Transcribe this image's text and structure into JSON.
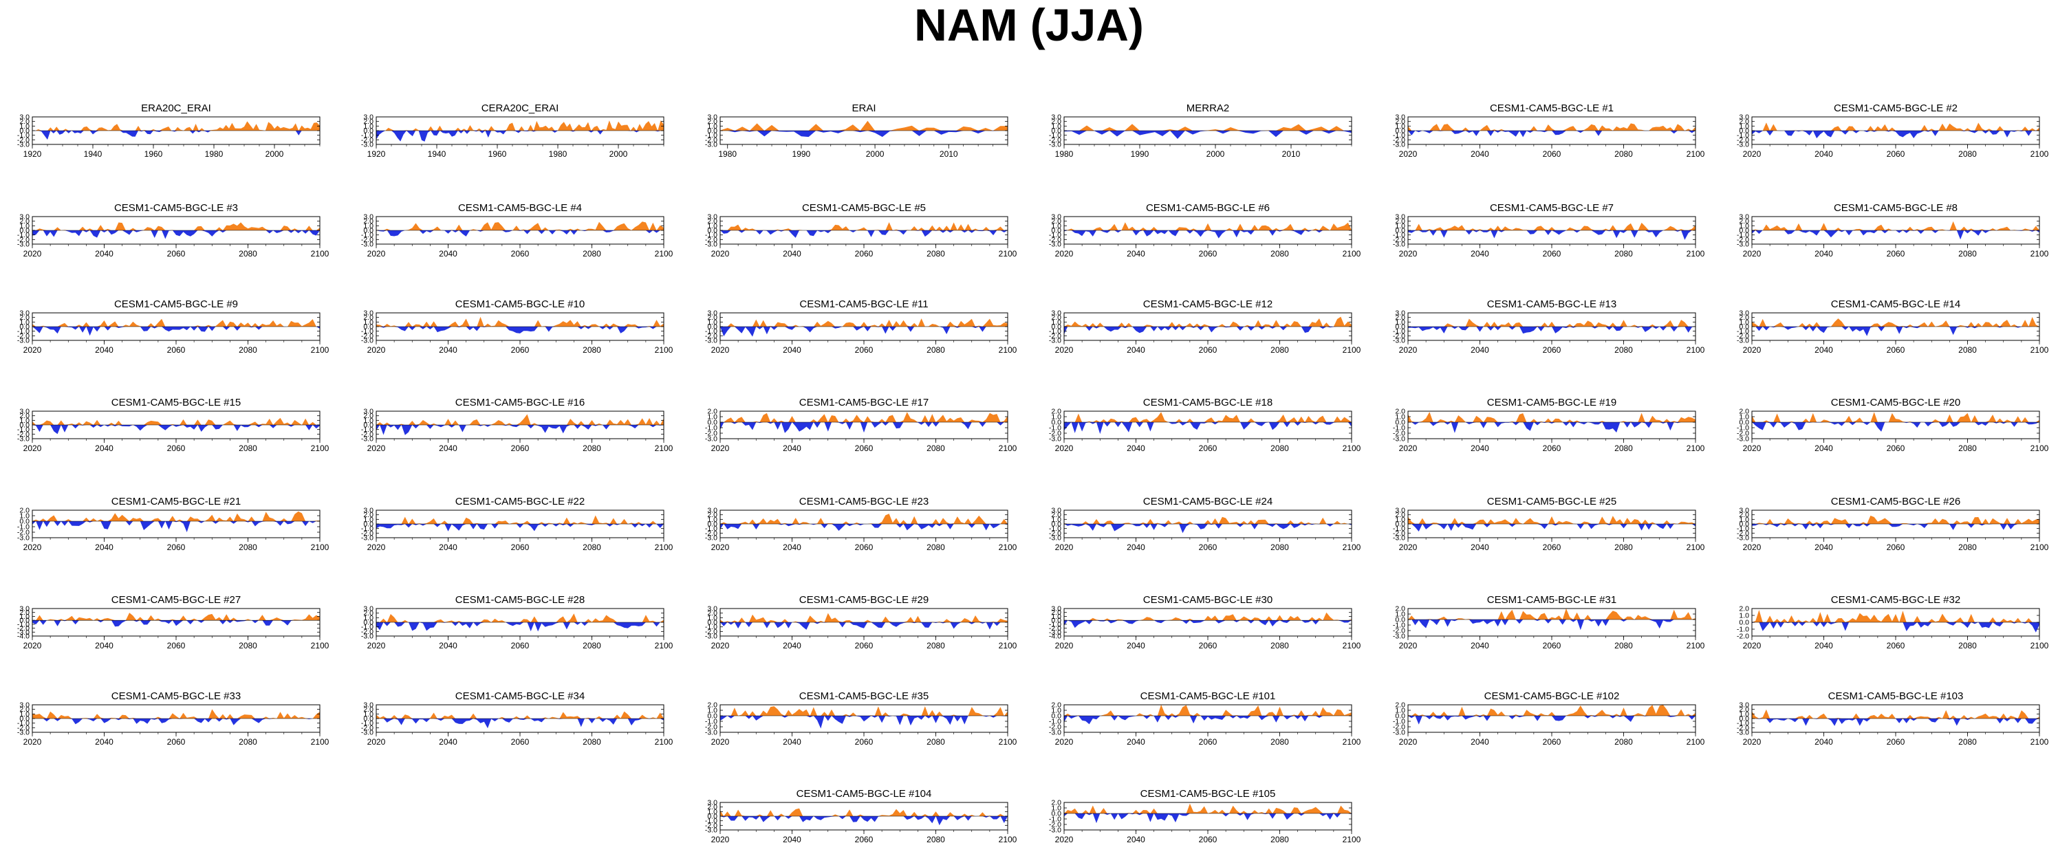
{
  "figure_title": "NAM (JJA)",
  "colors": {
    "positive": "#f5841f",
    "negative": "#2433e0",
    "axis": "#000000"
  },
  "chart_data": [
    {
      "type": "area",
      "title": "ERA20C_ERAI",
      "x_range": [
        1920,
        2015
      ],
      "x_ticks": [
        1920,
        1940,
        1960,
        1980,
        2000
      ],
      "y_ticks": [
        3.0,
        2.0,
        1.0,
        0.0,
        -1.0,
        -2.0,
        -3.0
      ],
      "ylim": [
        -3,
        3
      ],
      "seed": 1,
      "trend": 1.0
    },
    {
      "type": "area",
      "title": "CERA20C_ERAI",
      "x_range": [
        1920,
        2015
      ],
      "x_ticks": [
        1920,
        1940,
        1960,
        1980,
        2000
      ],
      "y_ticks": [
        3.0,
        2.0,
        1.0,
        0.0,
        -1.0,
        -2.0,
        -3.0
      ],
      "ylim": [
        -3,
        3
      ],
      "seed": 2,
      "trend": 1.2
    },
    {
      "type": "area",
      "title": "ERAI",
      "x_range": [
        1979,
        2018
      ],
      "x_ticks": [
        1980,
        1990,
        2000,
        2010
      ],
      "y_ticks": [
        3.0,
        2.0,
        1.0,
        0.0,
        -1.0,
        -2.0,
        -3.0
      ],
      "ylim": [
        -3,
        3
      ],
      "seed": 3,
      "trend": 0
    },
    {
      "type": "area",
      "title": "MERRA2",
      "x_range": [
        1980,
        2018
      ],
      "x_ticks": [
        1980,
        1990,
        2000,
        2010
      ],
      "y_ticks": [
        3.0,
        2.0,
        1.0,
        0.0,
        -1.0,
        -2.0,
        -3.0
      ],
      "ylim": [
        -3,
        3
      ],
      "seed": 4,
      "trend": 0
    },
    {
      "type": "area",
      "title": "CESM1-CAM5-BGC-LE #1",
      "x_range": [
        2020,
        2100
      ],
      "x_ticks": [
        2020,
        2040,
        2060,
        2080,
        2100
      ],
      "y_ticks": [
        3.0,
        2.0,
        1.0,
        0.0,
        -1.0,
        -2.0,
        -3.0
      ],
      "ylim": [
        -3,
        3
      ],
      "seed": 5,
      "trend": 0.3
    },
    {
      "type": "area",
      "title": "CESM1-CAM5-BGC-LE #2",
      "x_range": [
        2020,
        2100
      ],
      "x_ticks": [
        2020,
        2040,
        2060,
        2080,
        2100
      ],
      "y_ticks": [
        3.0,
        2.0,
        1.0,
        0.0,
        -1.0,
        -2.0,
        -3.0
      ],
      "ylim": [
        -3,
        3
      ],
      "seed": 6,
      "trend": 0.3
    },
    {
      "type": "area",
      "title": "CESM1-CAM5-BGC-LE #3",
      "x_range": [
        2020,
        2100
      ],
      "x_ticks": [
        2020,
        2040,
        2060,
        2080,
        2100
      ],
      "y_ticks": [
        3.0,
        2.0,
        1.0,
        0.0,
        -1.0,
        -2.0,
        -3.0
      ],
      "ylim": [
        -3,
        3
      ],
      "seed": 7,
      "trend": 0.4
    },
    {
      "type": "area",
      "title": "CESM1-CAM5-BGC-LE #4",
      "x_range": [
        2020,
        2100
      ],
      "x_ticks": [
        2020,
        2040,
        2060,
        2080,
        2100
      ],
      "y_ticks": [
        3.0,
        2.0,
        1.0,
        0.0,
        -1.0,
        -2.0,
        -3.0
      ],
      "ylim": [
        -3,
        3
      ],
      "seed": 8,
      "trend": 0.6
    },
    {
      "type": "area",
      "title": "CESM1-CAM5-BGC-LE #5",
      "x_range": [
        2020,
        2100
      ],
      "x_ticks": [
        2020,
        2040,
        2060,
        2080,
        2100
      ],
      "y_ticks": [
        3.0,
        2.0,
        1.0,
        0.0,
        -1.0,
        -2.0,
        -3.0
      ],
      "ylim": [
        -3,
        3
      ],
      "seed": 9,
      "trend": 0.2
    },
    {
      "type": "area",
      "title": "CESM1-CAM5-BGC-LE #6",
      "x_range": [
        2020,
        2100
      ],
      "x_ticks": [
        2020,
        2040,
        2060,
        2080,
        2100
      ],
      "y_ticks": [
        3.0,
        2.0,
        1.0,
        0.0,
        -1.0,
        -2.0,
        -3.0
      ],
      "ylim": [
        -3,
        3
      ],
      "seed": 10,
      "trend": 0.3
    },
    {
      "type": "area",
      "title": "CESM1-CAM5-BGC-LE #7",
      "x_range": [
        2020,
        2100
      ],
      "x_ticks": [
        2020,
        2040,
        2060,
        2080,
        2100
      ],
      "y_ticks": [
        3.0,
        2.0,
        1.0,
        0.0,
        -1.0,
        -2.0,
        -3.0
      ],
      "ylim": [
        -3,
        3
      ],
      "seed": 11,
      "trend": 0.1
    },
    {
      "type": "area",
      "title": "CESM1-CAM5-BGC-LE #8",
      "x_range": [
        2020,
        2100
      ],
      "x_ticks": [
        2020,
        2040,
        2060,
        2080,
        2100
      ],
      "y_ticks": [
        3.0,
        2.0,
        1.0,
        0.0,
        -1.0,
        -2.0,
        -3.0
      ],
      "ylim": [
        -3,
        3
      ],
      "seed": 12,
      "trend": 0.3
    },
    {
      "type": "area",
      "title": "CESM1-CAM5-BGC-LE #9",
      "x_range": [
        2020,
        2100
      ],
      "x_ticks": [
        2020,
        2040,
        2060,
        2080,
        2100
      ],
      "y_ticks": [
        3.0,
        2.0,
        1.0,
        0.0,
        -1.0,
        -2.0,
        -3.0
      ],
      "ylim": [
        -3,
        3
      ],
      "seed": 13,
      "trend": 0.5
    },
    {
      "type": "area",
      "title": "CESM1-CAM5-BGC-LE #10",
      "x_range": [
        2020,
        2100
      ],
      "x_ticks": [
        2020,
        2040,
        2060,
        2080,
        2100
      ],
      "y_ticks": [
        3.0,
        2.0,
        1.0,
        0.0,
        -1.0,
        -2.0,
        -3.0
      ],
      "ylim": [
        -3,
        3
      ],
      "seed": 14,
      "trend": 0.2
    },
    {
      "type": "area",
      "title": "CESM1-CAM5-BGC-LE #11",
      "x_range": [
        2020,
        2100
      ],
      "x_ticks": [
        2020,
        2040,
        2060,
        2080,
        2100
      ],
      "y_ticks": [
        3.0,
        2.0,
        1.0,
        0.0,
        -1.0,
        -2.0,
        -3.0
      ],
      "ylim": [
        -3,
        3
      ],
      "seed": 15,
      "trend": 0.5
    },
    {
      "type": "area",
      "title": "CESM1-CAM5-BGC-LE #12",
      "x_range": [
        2020,
        2100
      ],
      "x_ticks": [
        2020,
        2040,
        2060,
        2080,
        2100
      ],
      "y_ticks": [
        3.0,
        2.0,
        1.0,
        0.0,
        -1.0,
        -2.0,
        -3.0
      ],
      "ylim": [
        -3,
        3
      ],
      "seed": 16,
      "trend": 0.3
    },
    {
      "type": "area",
      "title": "CESM1-CAM5-BGC-LE #13",
      "x_range": [
        2020,
        2100
      ],
      "x_ticks": [
        2020,
        2040,
        2060,
        2080,
        2100
      ],
      "y_ticks": [
        3.0,
        2.0,
        1.0,
        0.0,
        -1.0,
        -2.0,
        -3.0
      ],
      "ylim": [
        -3,
        3
      ],
      "seed": 17,
      "trend": 0.2
    },
    {
      "type": "area",
      "title": "CESM1-CAM5-BGC-LE #14",
      "x_range": [
        2020,
        2100
      ],
      "x_ticks": [
        2020,
        2040,
        2060,
        2080,
        2100
      ],
      "y_ticks": [
        3.0,
        2.0,
        1.0,
        0.0,
        -1.0,
        -2.0,
        -3.0
      ],
      "ylim": [
        -3,
        3
      ],
      "seed": 18,
      "trend": 0.3
    },
    {
      "type": "area",
      "title": "CESM1-CAM5-BGC-LE #15",
      "x_range": [
        2020,
        2100
      ],
      "x_ticks": [
        2020,
        2040,
        2060,
        2080,
        2100
      ],
      "y_ticks": [
        3.0,
        2.0,
        1.0,
        0.0,
        -1.0,
        -2.0,
        -3.0
      ],
      "ylim": [
        -3,
        3
      ],
      "seed": 19,
      "trend": 0.3
    },
    {
      "type": "area",
      "title": "CESM1-CAM5-BGC-LE #16",
      "x_range": [
        2020,
        2100
      ],
      "x_ticks": [
        2020,
        2040,
        2060,
        2080,
        2100
      ],
      "y_ticks": [
        3.0,
        2.0,
        1.0,
        0.0,
        -1.0,
        -2.0,
        -3.0
      ],
      "ylim": [
        -3,
        3
      ],
      "seed": 20,
      "trend": 0.5
    },
    {
      "type": "area",
      "title": "CESM1-CAM5-BGC-LE #17",
      "x_range": [
        2020,
        2100
      ],
      "x_ticks": [
        2020,
        2040,
        2060,
        2080,
        2100
      ],
      "y_ticks": [
        2.0,
        1.0,
        0.0,
        -1.0,
        -2.0,
        -3.0
      ],
      "ylim": [
        -3,
        2
      ],
      "seed": 21,
      "trend": 0.4
    },
    {
      "type": "area",
      "title": "CESM1-CAM5-BGC-LE #18",
      "x_range": [
        2020,
        2100
      ],
      "x_ticks": [
        2020,
        2040,
        2060,
        2080,
        2100
      ],
      "y_ticks": [
        2.0,
        1.0,
        0.0,
        -1.0,
        -2.0,
        -3.0
      ],
      "ylim": [
        -3,
        2
      ],
      "seed": 22,
      "trend": 0.2
    },
    {
      "type": "area",
      "title": "CESM1-CAM5-BGC-LE #19",
      "x_range": [
        2020,
        2100
      ],
      "x_ticks": [
        2020,
        2040,
        2060,
        2080,
        2100
      ],
      "y_ticks": [
        2.0,
        1.0,
        0.0,
        -1.0,
        -2.0,
        -3.0
      ],
      "ylim": [
        -3,
        2
      ],
      "seed": 23,
      "trend": 0.1
    },
    {
      "type": "area",
      "title": "CESM1-CAM5-BGC-LE #20",
      "x_range": [
        2020,
        2100
      ],
      "x_ticks": [
        2020,
        2040,
        2060,
        2080,
        2100
      ],
      "y_ticks": [
        2.0,
        1.0,
        0.0,
        -1.0,
        -2.0,
        -3.0
      ],
      "ylim": [
        -3,
        2
      ],
      "seed": 24,
      "trend": 0.2
    },
    {
      "type": "area",
      "title": "CESM1-CAM5-BGC-LE #21",
      "x_range": [
        2020,
        2100
      ],
      "x_ticks": [
        2020,
        2040,
        2060,
        2080,
        2100
      ],
      "y_ticks": [
        2.0,
        1.0,
        0.0,
        -1.0,
        -2.0,
        -3.0
      ],
      "ylim": [
        -3,
        2
      ],
      "seed": 25,
      "trend": 0.1
    },
    {
      "type": "area",
      "title": "CESM1-CAM5-BGC-LE #22",
      "x_range": [
        2020,
        2100
      ],
      "x_ticks": [
        2020,
        2040,
        2060,
        2080,
        2100
      ],
      "y_ticks": [
        3.0,
        2.0,
        1.0,
        0.0,
        -1.0,
        -2.0,
        -3.0
      ],
      "ylim": [
        -3,
        3
      ],
      "seed": 26,
      "trend": 0.3
    },
    {
      "type": "area",
      "title": "CESM1-CAM5-BGC-LE #23",
      "x_range": [
        2020,
        2100
      ],
      "x_ticks": [
        2020,
        2040,
        2060,
        2080,
        2100
      ],
      "y_ticks": [
        3.0,
        2.0,
        1.0,
        0.0,
        -1.0,
        -2.0,
        -3.0
      ],
      "ylim": [
        -3,
        3
      ],
      "seed": 27,
      "trend": 0.2
    },
    {
      "type": "area",
      "title": "CESM1-CAM5-BGC-LE #24",
      "x_range": [
        2020,
        2100
      ],
      "x_ticks": [
        2020,
        2040,
        2060,
        2080,
        2100
      ],
      "y_ticks": [
        3.0,
        2.0,
        1.0,
        0.0,
        -1.0,
        -2.0,
        -3.0
      ],
      "ylim": [
        -3,
        3
      ],
      "seed": 28,
      "trend": 0.3
    },
    {
      "type": "area",
      "title": "CESM1-CAM5-BGC-LE #25",
      "x_range": [
        2020,
        2100
      ],
      "x_ticks": [
        2020,
        2040,
        2060,
        2080,
        2100
      ],
      "y_ticks": [
        3.0,
        2.0,
        1.0,
        0.0,
        -1.0,
        -2.0,
        -3.0
      ],
      "ylim": [
        -3,
        3
      ],
      "seed": 29,
      "trend": 0.2
    },
    {
      "type": "area",
      "title": "CESM1-CAM5-BGC-LE #26",
      "x_range": [
        2020,
        2100
      ],
      "x_ticks": [
        2020,
        2040,
        2060,
        2080,
        2100
      ],
      "y_ticks": [
        3.0,
        2.0,
        1.0,
        0.0,
        -1.0,
        -2.0,
        -3.0
      ],
      "ylim": [
        -3,
        3
      ],
      "seed": 30,
      "trend": 0.4
    },
    {
      "type": "area",
      "title": "CESM1-CAM5-BGC-LE #27",
      "x_range": [
        2020,
        2100
      ],
      "x_ticks": [
        2020,
        2040,
        2060,
        2080,
        2100
      ],
      "y_ticks": [
        3.0,
        2.0,
        1.0,
        0.0,
        -1.0,
        -2.0,
        -3.0,
        -4.0
      ],
      "ylim": [
        -4,
        3
      ],
      "seed": 31,
      "trend": 0.3
    },
    {
      "type": "area",
      "title": "CESM1-CAM5-BGC-LE #28",
      "x_range": [
        2020,
        2100
      ],
      "x_ticks": [
        2020,
        2040,
        2060,
        2080,
        2100
      ],
      "y_ticks": [
        3.0,
        2.0,
        1.0,
        0.0,
        -1.0,
        -2.0,
        -3.0
      ],
      "ylim": [
        -3,
        3
      ],
      "seed": 32,
      "trend": 0.2
    },
    {
      "type": "area",
      "title": "CESM1-CAM5-BGC-LE #29",
      "x_range": [
        2020,
        2100
      ],
      "x_ticks": [
        2020,
        2040,
        2060,
        2080,
        2100
      ],
      "y_ticks": [
        3.0,
        2.0,
        1.0,
        0.0,
        -1.0,
        -2.0,
        -3.0
      ],
      "ylim": [
        -3,
        3
      ],
      "seed": 33,
      "trend": 0.2
    },
    {
      "type": "area",
      "title": "CESM1-CAM5-BGC-LE #30",
      "x_range": [
        2020,
        2100
      ],
      "x_ticks": [
        2020,
        2040,
        2060,
        2080,
        2100
      ],
      "y_ticks": [
        3.0,
        2.0,
        1.0,
        0.0,
        -1.0,
        -2.0,
        -3.0,
        -4.0
      ],
      "ylim": [
        -4,
        3
      ],
      "seed": 34,
      "trend": 0.3
    },
    {
      "type": "area",
      "title": "CESM1-CAM5-BGC-LE #31",
      "x_range": [
        2020,
        2100
      ],
      "x_ticks": [
        2020,
        2040,
        2060,
        2080,
        2100
      ],
      "y_ticks": [
        2.0,
        1.0,
        0.0,
        -1.0,
        -2.0,
        -3.0
      ],
      "ylim": [
        -3,
        2
      ],
      "seed": 35,
      "trend": 0.5
    },
    {
      "type": "area",
      "title": "CESM1-CAM5-BGC-LE #32",
      "x_range": [
        2020,
        2100
      ],
      "x_ticks": [
        2020,
        2040,
        2060,
        2080,
        2100
      ],
      "y_ticks": [
        2.0,
        1.0,
        0.0,
        -1.0,
        -2.0
      ],
      "ylim": [
        -2,
        2
      ],
      "seed": 36,
      "trend": 0.1
    },
    {
      "type": "area",
      "title": "CESM1-CAM5-BGC-LE #33",
      "x_range": [
        2020,
        2100
      ],
      "x_ticks": [
        2020,
        2040,
        2060,
        2080,
        2100
      ],
      "y_ticks": [
        3.0,
        2.0,
        1.0,
        0.0,
        -1.0,
        -2.0,
        -3.0
      ],
      "ylim": [
        -3,
        3
      ],
      "seed": 37,
      "trend": 0.5
    },
    {
      "type": "area",
      "title": "CESM1-CAM5-BGC-LE #34",
      "x_range": [
        2020,
        2100
      ],
      "x_ticks": [
        2020,
        2040,
        2060,
        2080,
        2100
      ],
      "y_ticks": [
        3.0,
        2.0,
        1.0,
        0.0,
        -1.0,
        -2.0,
        -3.0
      ],
      "ylim": [
        -3,
        3
      ],
      "seed": 38,
      "trend": 0.4
    },
    {
      "type": "area",
      "title": "CESM1-CAM5-BGC-LE #35",
      "x_range": [
        2020,
        2100
      ],
      "x_ticks": [
        2020,
        2040,
        2060,
        2080,
        2100
      ],
      "y_ticks": [
        2.0,
        1.0,
        0.0,
        -1.0,
        -2.0,
        -3.0
      ],
      "ylim": [
        -3,
        2
      ],
      "seed": 39,
      "trend": 0.2
    },
    {
      "type": "area",
      "title": "CESM1-CAM5-BGC-LE #101",
      "x_range": [
        2020,
        2100
      ],
      "x_ticks": [
        2020,
        2040,
        2060,
        2080,
        2100
      ],
      "y_ticks": [
        2.0,
        1.0,
        0.0,
        -1.0,
        -2.0,
        -3.0
      ],
      "ylim": [
        -3,
        2
      ],
      "seed": 40,
      "trend": 0.2
    },
    {
      "type": "area",
      "title": "CESM1-CAM5-BGC-LE #102",
      "x_range": [
        2020,
        2100
      ],
      "x_ticks": [
        2020,
        2040,
        2060,
        2080,
        2100
      ],
      "y_ticks": [
        2.0,
        1.0,
        0.0,
        -1.0,
        -2.0,
        -3.0
      ],
      "ylim": [
        -3,
        2
      ],
      "seed": 41,
      "trend": 0.3
    },
    {
      "type": "area",
      "title": "CESM1-CAM5-BGC-LE #103",
      "x_range": [
        2020,
        2100
      ],
      "x_ticks": [
        2020,
        2040,
        2060,
        2080,
        2100
      ],
      "y_ticks": [
        3.0,
        2.0,
        1.0,
        0.0,
        -1.0,
        -2.0,
        -3.0
      ],
      "ylim": [
        -3,
        3
      ],
      "seed": 42,
      "trend": 0.3
    },
    {
      "type": "area",
      "title": "CESM1-CAM5-BGC-LE #104",
      "x_range": [
        2020,
        2100
      ],
      "x_ticks": [
        2020,
        2040,
        2060,
        2080,
        2100
      ],
      "y_ticks": [
        3.0,
        2.0,
        1.0,
        0.0,
        -1.0,
        -2.0,
        -3.0
      ],
      "ylim": [
        -3,
        3
      ],
      "seed": 43,
      "trend": 0.2
    },
    {
      "type": "area",
      "title": "CESM1-CAM5-BGC-LE #105",
      "x_range": [
        2020,
        2100
      ],
      "x_ticks": [
        2020,
        2040,
        2060,
        2080,
        2100
      ],
      "y_ticks": [
        2.0,
        1.0,
        0.0,
        -1.0,
        -2.0,
        -3.0
      ],
      "ylim": [
        -3,
        2
      ],
      "seed": 44,
      "trend": 0.2
    }
  ]
}
